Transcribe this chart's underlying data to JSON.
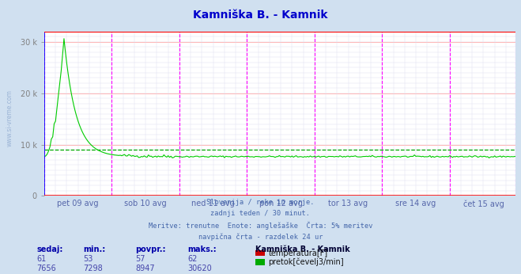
{
  "title": "Kamniška B. - Kamnik",
  "title_color": "#0000cc",
  "bg_color": "#d0e0f0",
  "plot_bg_color": "#ffffff",
  "grid_major_h_color": "#ffaaaa",
  "grid_minor_h_color": "#ddddee",
  "grid_minor_v_color": "#ddddee",
  "ylabel_color": "#5566aa",
  "xlabel_color": "#5566aa",
  "ylim": [
    0,
    32000
  ],
  "yticks": [
    0,
    10000,
    20000,
    30000
  ],
  "ytick_labels": [
    "0",
    "10 k",
    "20 k",
    "30 k"
  ],
  "n_points": 336,
  "peak_index": 14,
  "peak_value": 30620,
  "base_flow": 7656,
  "avg_flow": 8947,
  "x_day_labels": [
    "pet 09 avg",
    "sob 10 avg",
    "ned 11 avg",
    "pon 12 avg",
    "tor 13 avg",
    "sre 14 avg",
    "čet 15 avg"
  ],
  "subtitle_lines": [
    "Slovenija / reke in morje.",
    "zadnji teden / 30 minut.",
    "Meritve: trenutne  Enote: anglešaške  Črta: 5% meritev",
    "navpična črta - razdelek 24 ur"
  ],
  "subtitle_color": "#4466aa",
  "legend_title": "Kamniška B. - Kamnik",
  "legend_items": [
    {
      "label": "temperatura[F]",
      "color": "#cc0000"
    },
    {
      "label": "pretok[čevelj3/min]",
      "color": "#00aa00"
    }
  ],
  "table_headers": [
    "sedaj:",
    "min.:",
    "povpr.:",
    "maks.:"
  ],
  "table_row1": [
    "61",
    "53",
    "57",
    "62"
  ],
  "table_row2": [
    "7656",
    "7298",
    "8947",
    "30620"
  ],
  "watermark": "www.si-vreme.com",
  "left_line_color": "#0000ff",
  "day_line_color": "#ff00ff",
  "bottom_line_color": "#ff0000",
  "top_line_color": "#ff0000",
  "avg_line_color": "#00aa00",
  "flow_line_color": "#00cc00",
  "temp_line_color": "#cc0000",
  "temp_current": 61,
  "temp_min": 53,
  "temp_avg": 57,
  "temp_max": 62,
  "flow_current": 7656,
  "flow_min": 7298,
  "flow_avg": 8947,
  "flow_max": 30620
}
